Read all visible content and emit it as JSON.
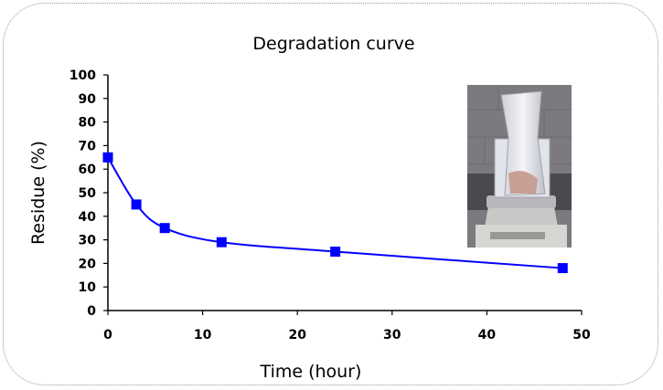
{
  "chart_data": {
    "type": "line",
    "title": "Degradation curve",
    "xlabel": "Time (hour)",
    "ylabel": "Residue (%)",
    "xlim": [
      0,
      50
    ],
    "ylim": [
      0,
      100
    ],
    "x_ticks": [
      0,
      10,
      20,
      30,
      40,
      50
    ],
    "y_ticks": [
      0,
      10,
      20,
      30,
      40,
      50,
      60,
      70,
      80,
      90,
      100
    ],
    "grid": false,
    "legend": "none",
    "series": [
      {
        "x": [
          0,
          3,
          6,
          12,
          24,
          48
        ],
        "values": [
          65,
          45,
          35,
          29,
          25,
          18
        ],
        "color": "#0000ff",
        "marker": "square",
        "line": "smooth"
      }
    ],
    "inset_image": "photo of a mesh bag in a glass beaker on a laboratory balance"
  }
}
